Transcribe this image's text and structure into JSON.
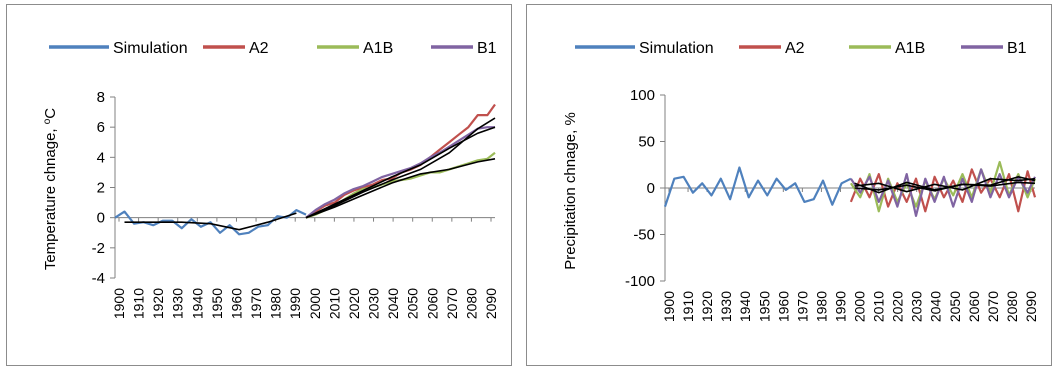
{
  "charts": [
    {
      "type": "line",
      "ylabel": "Temperature chnage, ",
      "ylabel_sup": "o",
      "ylabel_unit": "C",
      "xlabel": "",
      "ylim": [
        -4,
        8
      ],
      "yticks": [
        -4,
        -2,
        0,
        2,
        4,
        6,
        8
      ],
      "xlim": [
        1900,
        2099
      ],
      "xticks": [
        "1900",
        "1910",
        "1920",
        "1930",
        "1940",
        "1950",
        "1960",
        "1970",
        "1980",
        "1990",
        "2000",
        "2010",
        "2020",
        "2030",
        "2040",
        "2050",
        "2060",
        "2070",
        "2080",
        "2090"
      ],
      "legend_position": "top",
      "legend": [
        "Simulation",
        "A2",
        "A1B",
        "B1"
      ],
      "colors": {
        "Simulation": "#4f81bd",
        "A2": "#c0504d",
        "A1B": "#9bbb59",
        "B1": "#8064a2",
        "trend": "#000000"
      },
      "series": [
        {
          "name": "Simulation",
          "x": [
            1900,
            1905,
            1910,
            1915,
            1920,
            1925,
            1930,
            1935,
            1940,
            1945,
            1950,
            1955,
            1960,
            1965,
            1970,
            1975,
            1980,
            1985,
            1990,
            1995,
            2000
          ],
          "y": [
            0,
            0.4,
            -0.4,
            -0.3,
            -0.5,
            -0.2,
            -0.2,
            -0.7,
            -0.1,
            -0.6,
            -0.3,
            -1.0,
            -0.5,
            -1.1,
            -1.0,
            -0.6,
            -0.5,
            0.1,
            0.0,
            0.5,
            0.2
          ]
        },
        {
          "name": "A2",
          "x": [
            2000,
            2005,
            2010,
            2015,
            2020,
            2025,
            2030,
            2035,
            2040,
            2045,
            2050,
            2055,
            2060,
            2065,
            2070,
            2075,
            2080,
            2085,
            2090,
            2095,
            2099
          ],
          "y": [
            0,
            0.4,
            0.8,
            1.0,
            1.5,
            1.8,
            2.0,
            2.2,
            2.5,
            2.6,
            3.0,
            3.2,
            3.5,
            4.0,
            4.5,
            5.0,
            5.5,
            6.0,
            6.8,
            6.8,
            7.5
          ]
        },
        {
          "name": "A1B",
          "x": [
            2000,
            2005,
            2010,
            2015,
            2020,
            2025,
            2030,
            2035,
            2040,
            2045,
            2050,
            2055,
            2060,
            2065,
            2070,
            2075,
            2080,
            2085,
            2090,
            2095,
            2099
          ],
          "y": [
            0,
            0.2,
            0.5,
            0.8,
            1.2,
            1.6,
            1.9,
            2.0,
            2.2,
            2.4,
            2.5,
            2.6,
            2.8,
            3.0,
            3.0,
            3.2,
            3.4,
            3.6,
            3.8,
            3.9,
            4.3
          ]
        },
        {
          "name": "B1",
          "x": [
            2000,
            2005,
            2010,
            2015,
            2020,
            2025,
            2030,
            2035,
            2040,
            2045,
            2050,
            2055,
            2060,
            2065,
            2070,
            2075,
            2080,
            2085,
            2090,
            2095,
            2099
          ],
          "y": [
            0,
            0.5,
            0.9,
            1.2,
            1.6,
            1.9,
            2.1,
            2.4,
            2.7,
            2.9,
            3.1,
            3.3,
            3.6,
            4.0,
            4.3,
            4.7,
            5.1,
            5.5,
            5.9,
            6.0,
            6.0
          ]
        }
      ],
      "trend_lines": [
        {
          "x": [
            1905,
            1920,
            1935,
            1950,
            1965,
            1980,
            1995
          ],
          "y": [
            -0.3,
            -0.3,
            -0.3,
            -0.4,
            -0.8,
            -0.3,
            0.3
          ]
        },
        {
          "x": [
            2000,
            2015,
            2030,
            2045,
            2060,
            2075,
            2090,
            2099
          ],
          "y": [
            0,
            0.8,
            1.7,
            2.5,
            3.2,
            4.3,
            5.9,
            6.6
          ]
        },
        {
          "x": [
            2000,
            2015,
            2030,
            2045,
            2060,
            2075,
            2090,
            2099
          ],
          "y": [
            0,
            0.7,
            1.5,
            2.3,
            2.9,
            3.2,
            3.7,
            3.9
          ]
        },
        {
          "x": [
            2000,
            2015,
            2030,
            2045,
            2060,
            2075,
            2090,
            2099
          ],
          "y": [
            0,
            0.9,
            1.8,
            2.7,
            3.5,
            4.6,
            5.6,
            6.0
          ]
        }
      ]
    },
    {
      "type": "line",
      "ylabel": "Precipitation chnage, %",
      "xlabel": "",
      "ylim": [
        -100,
        100
      ],
      "yticks": [
        -100,
        -50,
        0,
        50,
        100
      ],
      "xlim": [
        1900,
        2099
      ],
      "xticks": [
        "1900",
        "1910",
        "1920",
        "1930",
        "1940",
        "1950",
        "1960",
        "1970",
        "1980",
        "1990",
        "2000",
        "2010",
        "2020",
        "2030",
        "2040",
        "2050",
        "2060",
        "2070",
        "2080",
        "2090"
      ],
      "legend_position": "top",
      "legend": [
        "Simulation",
        "A2",
        "A1B",
        "B1"
      ],
      "colors": {
        "Simulation": "#4f81bd",
        "A2": "#c0504d",
        "A1B": "#9bbb59",
        "B1": "#8064a2",
        "trend": "#000000"
      },
      "series": [
        {
          "name": "Simulation",
          "x": [
            1900,
            1905,
            1910,
            1915,
            1920,
            1925,
            1930,
            1935,
            1940,
            1945,
            1950,
            1955,
            1960,
            1965,
            1970,
            1975,
            1980,
            1985,
            1990,
            1995,
            2000
          ],
          "y": [
            -20,
            10,
            12,
            -5,
            5,
            -8,
            10,
            -12,
            22,
            -10,
            8,
            -8,
            10,
            -2,
            5,
            -15,
            -12,
            8,
            -18,
            5,
            10
          ]
        },
        {
          "name": "A2",
          "x": [
            2000,
            2005,
            2010,
            2015,
            2020,
            2025,
            2030,
            2035,
            2040,
            2045,
            2050,
            2055,
            2060,
            2065,
            2070,
            2075,
            2080,
            2085,
            2090,
            2095,
            2099
          ],
          "y": [
            -15,
            10,
            -10,
            15,
            -20,
            5,
            -15,
            10,
            -25,
            12,
            -10,
            8,
            -15,
            20,
            -5,
            10,
            -10,
            15,
            -25,
            18,
            -10
          ]
        },
        {
          "name": "A1B",
          "x": [
            2000,
            2005,
            2010,
            2015,
            2020,
            2025,
            2030,
            2035,
            2040,
            2045,
            2050,
            2055,
            2060,
            2065,
            2070,
            2075,
            2080,
            2085,
            2090,
            2095,
            2099
          ],
          "y": [
            5,
            -10,
            15,
            -25,
            10,
            -15,
            5,
            -20,
            8,
            -12,
            10,
            -8,
            15,
            -10,
            20,
            -5,
            28,
            -8,
            15,
            -10,
            10
          ]
        },
        {
          "name": "B1",
          "x": [
            2000,
            2005,
            2010,
            2015,
            2020,
            2025,
            2030,
            2035,
            2040,
            2045,
            2050,
            2055,
            2060,
            2065,
            2070,
            2075,
            2080,
            2085,
            2090,
            2095,
            2099
          ],
          "y": [
            10,
            -5,
            12,
            -15,
            8,
            -20,
            15,
            -30,
            10,
            -15,
            12,
            -20,
            10,
            -15,
            20,
            -10,
            15,
            -10,
            12,
            -5,
            12
          ]
        }
      ],
      "trend_lines": [
        {
          "x": [
            2002,
            2015,
            2030,
            2045,
            2060,
            2075,
            2090,
            2099
          ],
          "y": [
            0,
            -2,
            3,
            -3,
            4,
            2,
            6,
            5
          ]
        },
        {
          "x": [
            2002,
            2015,
            2030,
            2045,
            2060,
            2075,
            2090,
            2099
          ],
          "y": [
            2,
            5,
            -4,
            4,
            -2,
            10,
            8,
            10
          ]
        },
        {
          "x": [
            2002,
            2015,
            2030,
            2045,
            2060,
            2075,
            2090,
            2099
          ],
          "y": [
            5,
            -5,
            6,
            -2,
            4,
            3,
            12,
            8
          ]
        }
      ]
    }
  ]
}
